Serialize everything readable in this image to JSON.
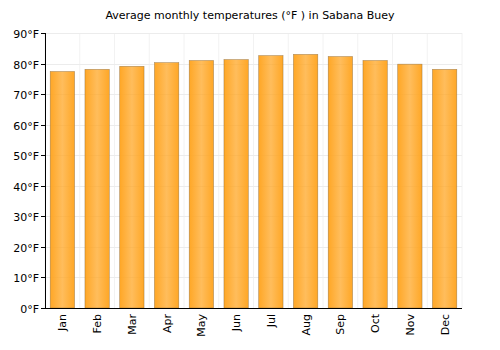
{
  "chart_data": {
    "type": "bar",
    "title": "Average monthly temperatures (°F ) in Sabana Buey",
    "categories": [
      "Jan",
      "Feb",
      "Mar",
      "Apr",
      "May",
      "Jun",
      "Jul",
      "Aug",
      "Sep",
      "Oct",
      "Nov",
      "Dec"
    ],
    "values": [
      77.4,
      78.1,
      79.1,
      80.3,
      81.0,
      81.3,
      82.6,
      83.0,
      82.3,
      81.0,
      79.8,
      78.1
    ],
    "color": "#ffa726",
    "ylim": [
      0,
      90
    ],
    "yticks": [
      {
        "value": 0,
        "label": "0°F"
      },
      {
        "value": 10,
        "label": "10°F"
      },
      {
        "value": 20,
        "label": "20°F"
      },
      {
        "value": 30,
        "label": "30°F"
      },
      {
        "value": 40,
        "label": "40°F"
      },
      {
        "value": 50,
        "label": "50°F"
      },
      {
        "value": 60,
        "label": "60°F"
      },
      {
        "value": 70,
        "label": "70°F"
      },
      {
        "value": 80,
        "label": "80°F"
      },
      {
        "value": 90,
        "label": "90°F"
      }
    ],
    "grid": true
  }
}
